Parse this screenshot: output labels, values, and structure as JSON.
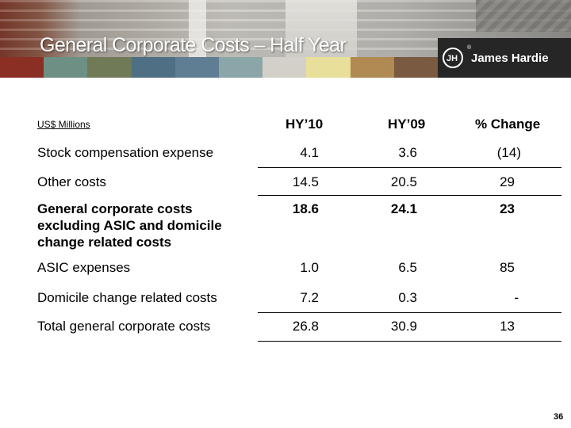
{
  "slide": {
    "title": "General Corporate Costs – Half Year",
    "brand_name": "James Hardie",
    "page_number": "36",
    "swatch_colors": [
      "#8b2e24",
      "#6d8f84",
      "#707a56",
      "#4f6f85",
      "#5f7e94",
      "#8aa6a8",
      "#d2d0c9",
      "#e8e09a",
      "#b08a52",
      "#7a5a40"
    ]
  },
  "table": {
    "units_label": "US$ Millions",
    "headers": [
      "HY’10",
      "HY’09",
      "% Change"
    ],
    "rows": [
      {
        "label": "Stock compensation expense",
        "hy10": "4.1",
        "hy09": "3.6",
        "change": "(14)",
        "bold": false
      },
      {
        "label": "Other costs",
        "hy10": "14.5",
        "hy09": "20.5",
        "change": "29",
        "bold": false
      },
      {
        "label": "General corporate costs excluding ASIC and domicile change related costs",
        "hy10": "18.6",
        "hy09": "24.1",
        "change": "23",
        "bold": true
      },
      {
        "label": "ASIC expenses",
        "hy10": "1.0",
        "hy09": "6.5",
        "change": "85",
        "bold": false
      },
      {
        "label": "Domicile change related costs",
        "hy10": "7.2",
        "hy09": "0.3",
        "change": "-",
        "bold": false
      },
      {
        "label": "Total general corporate costs",
        "hy10": "26.8",
        "hy09": "30.9",
        "change": "13",
        "bold": false
      }
    ]
  }
}
